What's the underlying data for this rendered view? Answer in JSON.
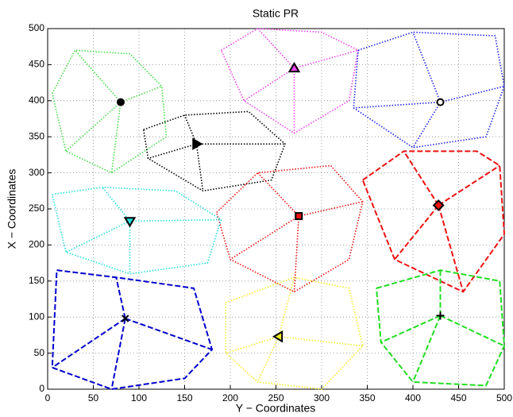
{
  "chart_data": {
    "type": "network",
    "title": "Static PR",
    "xlabel": "Y − Coordinates",
    "ylabel": "X − Coordinates",
    "xlim": [
      0,
      500
    ],
    "ylim": [
      0,
      500
    ],
    "xticks": [
      0,
      50,
      100,
      150,
      200,
      250,
      300,
      350,
      400,
      450,
      500
    ],
    "yticks": [
      0,
      50,
      100,
      150,
      200,
      250,
      300,
      350,
      400,
      450,
      500
    ],
    "grid": true,
    "series": [
      {
        "color": "#44dd44",
        "style": "dotted",
        "marker": "filled-circle",
        "head_x": 80,
        "head_y": 398,
        "x": [
          5,
          30,
          90,
          125,
          130,
          70,
          20,
          5,
          null,
          80,
          30,
          null,
          80,
          125,
          null,
          80,
          70,
          null,
          80,
          20
        ],
        "y": [
          410,
          470,
          465,
          420,
          350,
          300,
          330,
          410,
          null,
          398,
          470,
          null,
          398,
          420,
          null,
          398,
          300,
          null,
          398,
          330
        ]
      },
      {
        "color": "#ee44ee",
        "style": "dotted",
        "marker": "triangle-up",
        "head_x": 270,
        "head_y": 445,
        "x": [
          190,
          230,
          300,
          340,
          330,
          270,
          215,
          190,
          null,
          270,
          230,
          null,
          270,
          340,
          null,
          270,
          270,
          null,
          270,
          215
        ],
        "y": [
          470,
          500,
          495,
          470,
          400,
          355,
          400,
          470,
          null,
          445,
          500,
          null,
          445,
          470,
          null,
          445,
          355,
          null,
          445,
          400
        ]
      },
      {
        "color": "#2222ee",
        "style": "dotted",
        "marker": "circle",
        "head_x": 430,
        "head_y": 398,
        "x": [
          340,
          400,
          490,
          500,
          480,
          400,
          335,
          340,
          null,
          430,
          400,
          null,
          430,
          500,
          null,
          430,
          400,
          null,
          430,
          335
        ],
        "y": [
          470,
          495,
          490,
          420,
          350,
          335,
          390,
          470,
          null,
          398,
          495,
          null,
          398,
          420,
          null,
          398,
          335,
          null,
          398,
          390
        ]
      },
      {
        "color": "#000000",
        "style": "dotted",
        "marker": "triangle-right",
        "head_x": 163,
        "head_y": 340,
        "x": [
          105,
          150,
          220,
          260,
          245,
          170,
          110,
          105,
          null,
          163,
          150,
          null,
          163,
          260,
          null,
          163,
          170,
          null,
          163,
          110
        ],
        "y": [
          360,
          380,
          385,
          340,
          290,
          275,
          320,
          360,
          null,
          340,
          380,
          null,
          340,
          340,
          null,
          340,
          275,
          null,
          340,
          320
        ]
      },
      {
        "color": "#ee1111",
        "style": "dotted",
        "marker": "square",
        "head_x": 275,
        "head_y": 240,
        "x": [
          185,
          230,
          310,
          345,
          330,
          270,
          200,
          185,
          null,
          275,
          230,
          null,
          275,
          345,
          null,
          275,
          270,
          null,
          275,
          200
        ],
        "y": [
          245,
          300,
          310,
          260,
          180,
          135,
          180,
          245,
          null,
          240,
          300,
          null,
          240,
          260,
          null,
          240,
          135,
          null,
          240,
          180
        ]
      },
      {
        "color": "#ee1111",
        "style": "dashed",
        "marker": "diamond",
        "head_x": 428,
        "head_y": 255,
        "x": [
          345,
          390,
          470,
          495,
          500,
          455,
          380,
          345,
          null,
          428,
          390,
          null,
          428,
          495,
          null,
          428,
          455,
          null,
          428,
          380
        ],
        "y": [
          290,
          330,
          330,
          310,
          215,
          135,
          180,
          290,
          null,
          255,
          330,
          null,
          255,
          310,
          null,
          255,
          135,
          null,
          255,
          180
        ]
      },
      {
        "color": "#22dddd",
        "style": "dotted",
        "marker": "triangle-down",
        "head_x": 90,
        "head_y": 233,
        "x": [
          5,
          60,
          140,
          190,
          175,
          90,
          20,
          5,
          null,
          90,
          60,
          null,
          90,
          190,
          null,
          90,
          90,
          null,
          90,
          20
        ],
        "y": [
          270,
          280,
          275,
          235,
          175,
          160,
          190,
          270,
          null,
          233,
          280,
          null,
          233,
          235,
          null,
          233,
          160,
          null,
          233,
          190
        ]
      },
      {
        "color": "#0000cc",
        "style": "dashed",
        "marker": "x",
        "head_x": 85,
        "head_y": 98,
        "x": [
          10,
          75,
          160,
          180,
          150,
          70,
          5,
          10,
          null,
          85,
          75,
          null,
          85,
          180,
          null,
          85,
          70,
          null,
          85,
          5
        ],
        "y": [
          165,
          155,
          140,
          55,
          15,
          0,
          30,
          165,
          null,
          98,
          155,
          null,
          98,
          55,
          null,
          98,
          0,
          null,
          98,
          30
        ]
      },
      {
        "color": "#eeee22",
        "style": "dotted",
        "marker": "triangle-left",
        "head_x": 253,
        "head_y": 73,
        "x": [
          195,
          270,
          330,
          345,
          300,
          230,
          195,
          195,
          null,
          253,
          270,
          null,
          253,
          345,
          null,
          253,
          230,
          null,
          253,
          195
        ],
        "y": [
          120,
          155,
          140,
          60,
          0,
          10,
          50,
          120,
          null,
          73,
          155,
          null,
          73,
          60,
          null,
          73,
          10,
          null,
          73,
          50
        ]
      },
      {
        "color": "#22dd22",
        "style": "dashed",
        "marker": "plus",
        "head_x": 430,
        "head_y": 102,
        "x": [
          360,
          430,
          495,
          500,
          480,
          400,
          365,
          360,
          null,
          430,
          430,
          null,
          430,
          500,
          null,
          430,
          400,
          null,
          430,
          365
        ],
        "y": [
          140,
          165,
          150,
          60,
          5,
          10,
          65,
          140,
          null,
          102,
          165,
          null,
          102,
          60,
          null,
          102,
          10,
          null,
          102,
          65
        ]
      }
    ]
  }
}
